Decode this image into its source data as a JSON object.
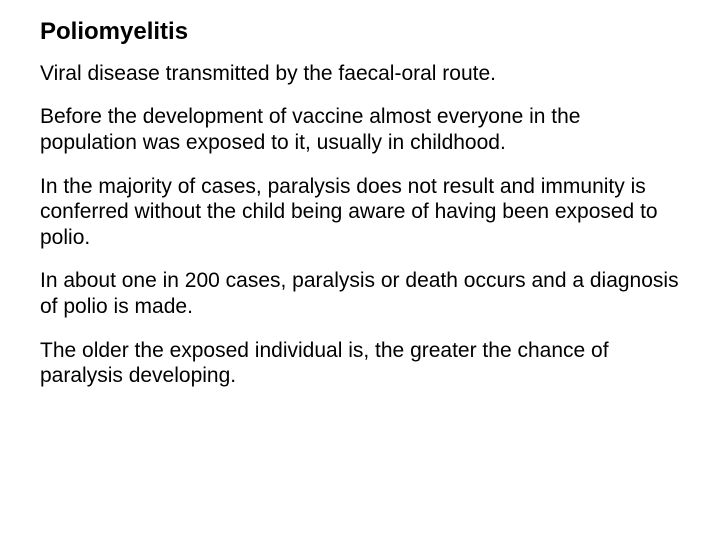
{
  "slide": {
    "title": "Poliomyelitis",
    "paragraphs": [
      "Viral disease transmitted by the faecal-oral route.",
      "Before the development of vaccine almost everyone in the population was exposed to it, usually in childhood.",
      "In the majority of cases, paralysis does not result and immunity is conferred without the child being aware of having been exposed to polio.",
      "In about one in 200 cases, paralysis or death occurs and a diagnosis of polio is made.",
      "The older the exposed individual is, the greater the chance of paralysis developing."
    ],
    "colors": {
      "background": "#ffffff",
      "text": "#000000"
    },
    "typography": {
      "title_fontsize": 24,
      "title_fontweight": "bold",
      "body_fontsize": 21,
      "body_fontweight": "normal",
      "font_family": "Arial"
    }
  }
}
